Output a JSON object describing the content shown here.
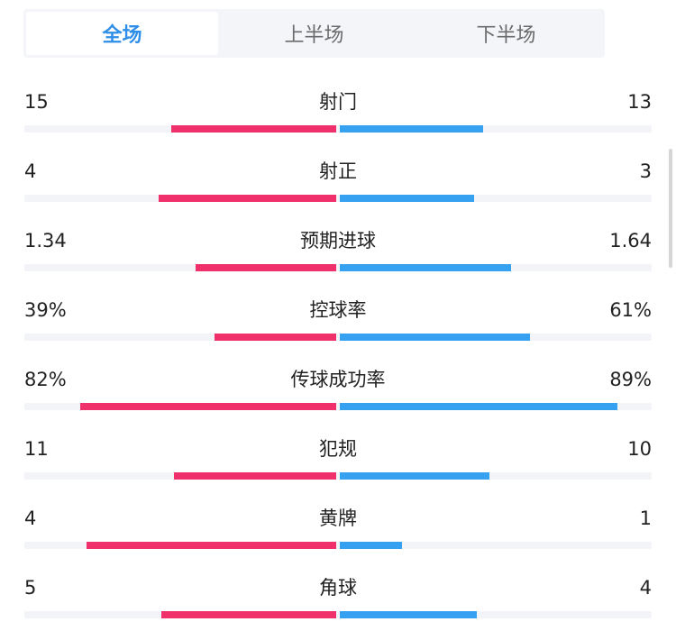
{
  "tabs": [
    {
      "label": "全场",
      "active": true
    },
    {
      "label": "上半场",
      "active": false
    },
    {
      "label": "下半场",
      "active": false
    }
  ],
  "colors": {
    "accent": "#2e8ee8",
    "home_bar": "#f0306a",
    "away_bar": "#35a1f0",
    "track": "#f3f4f8"
  },
  "stats": [
    {
      "label": "射门",
      "home": "15",
      "away": "13",
      "home_fraction": 0.53,
      "away_fraction": 0.46
    },
    {
      "label": "射正",
      "home": "4",
      "away": "3",
      "home_fraction": 0.57,
      "away_fraction": 0.43
    },
    {
      "label": "预期进球",
      "home": "1.34",
      "away": "1.64",
      "home_fraction": 0.45,
      "away_fraction": 0.55
    },
    {
      "label": "控球率",
      "home": "39%",
      "away": "61%",
      "home_fraction": 0.39,
      "away_fraction": 0.61
    },
    {
      "label": "传球成功率",
      "home": "82%",
      "away": "89%",
      "home_fraction": 0.82,
      "away_fraction": 0.89
    },
    {
      "label": "犯规",
      "home": "11",
      "away": "10",
      "home_fraction": 0.52,
      "away_fraction": 0.48
    },
    {
      "label": "黄牌",
      "home": "4",
      "away": "1",
      "home_fraction": 0.8,
      "away_fraction": 0.2
    },
    {
      "label": "角球",
      "home": "5",
      "away": "4",
      "home_fraction": 0.56,
      "away_fraction": 0.44
    }
  ]
}
